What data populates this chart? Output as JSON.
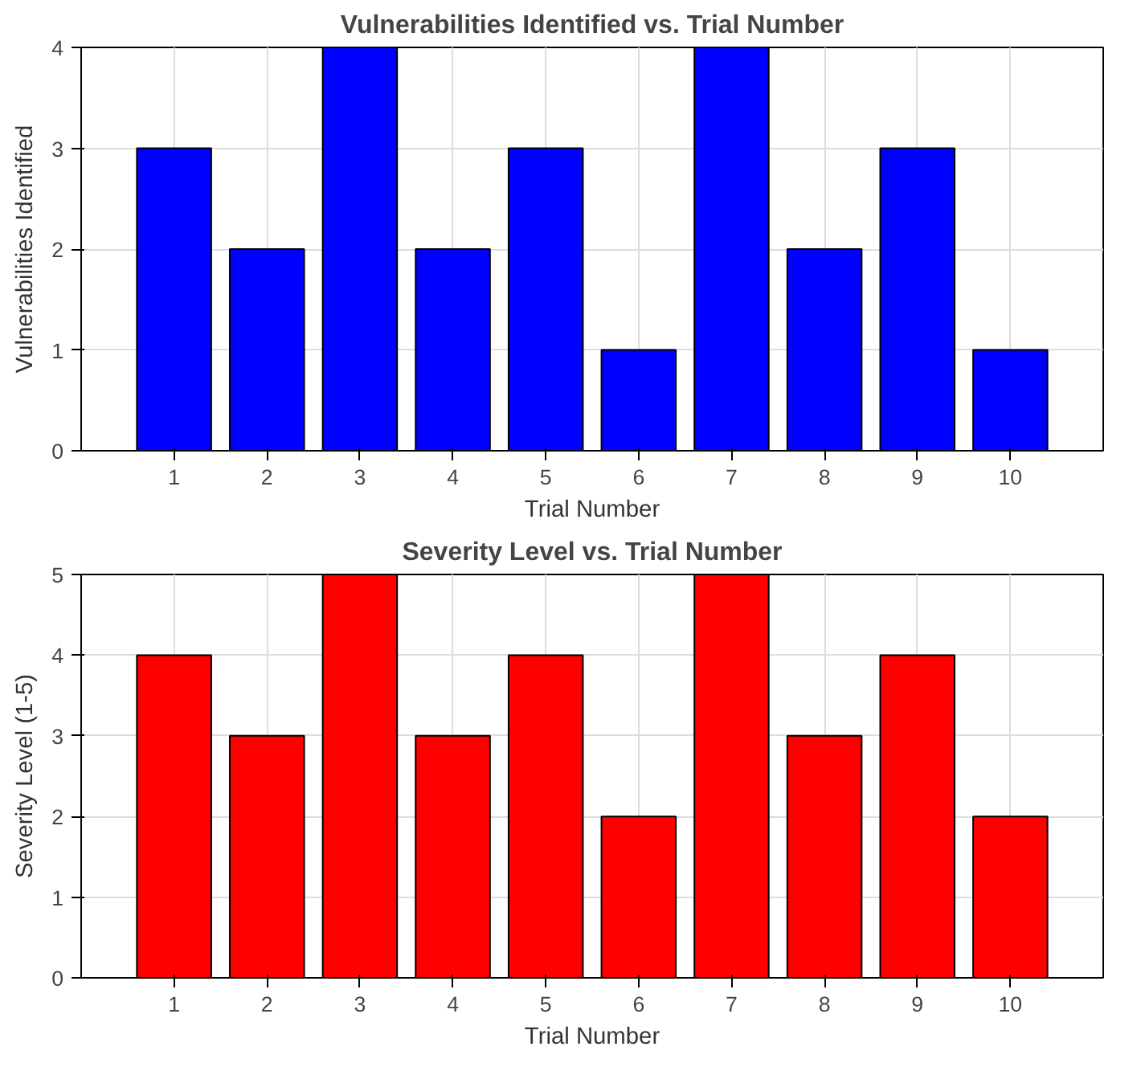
{
  "chart_data": [
    {
      "type": "bar",
      "title": "Vulnerabilities Identified vs. Trial Number",
      "xlabel": "Trial Number",
      "ylabel": "Vulnerabilities Identified",
      "x": [
        1,
        2,
        3,
        4,
        5,
        6,
        7,
        8,
        9,
        10
      ],
      "xlim": [
        0,
        11
      ],
      "xticks": [
        1,
        2,
        3,
        4,
        5,
        6,
        7,
        8,
        9,
        10
      ],
      "ylim": [
        0,
        4
      ],
      "yticks": [
        0,
        1,
        2,
        3,
        4
      ],
      "grid": true,
      "series": [
        {
          "color": "#0000ff",
          "values": [
            3,
            2,
            4,
            2,
            3,
            1,
            4,
            2,
            3,
            1
          ]
        }
      ]
    },
    {
      "type": "bar",
      "title": "Severity Level vs. Trial Number",
      "xlabel": "Trial Number",
      "ylabel": "Severity Level (1-5)",
      "x": [
        1,
        2,
        3,
        4,
        5,
        6,
        7,
        8,
        9,
        10
      ],
      "xlim": [
        0,
        11
      ],
      "xticks": [
        1,
        2,
        3,
        4,
        5,
        6,
        7,
        8,
        9,
        10
      ],
      "ylim": [
        0,
        5
      ],
      "yticks": [
        0,
        1,
        2,
        3,
        4,
        5
      ],
      "grid": true,
      "series": [
        {
          "color": "#ff0000",
          "values": [
            4,
            3,
            5,
            3,
            4,
            2,
            5,
            3,
            4,
            2
          ]
        }
      ]
    }
  ]
}
